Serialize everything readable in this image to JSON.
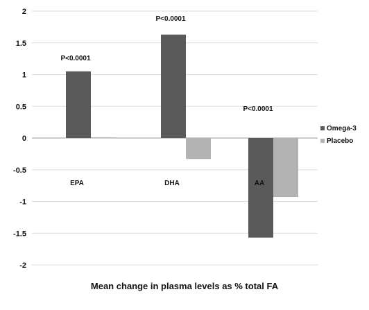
{
  "chart_data": {
    "type": "bar",
    "categories": [
      "EPA",
      "DHA",
      "AA"
    ],
    "series": [
      {
        "name": "Omega-3",
        "values": [
          1.05,
          1.63,
          -1.57
        ],
        "color": "#5a5a5a"
      },
      {
        "name": "Placebo",
        "values": [
          0.01,
          -0.33,
          -0.93
        ],
        "color": "#b3b3b3"
      }
    ],
    "annotations": [
      "P<0.0001",
      "P<0.0001",
      "P<0.0001"
    ],
    "xlabel": "Mean change in plasma levels as % total FA",
    "ylabel": "",
    "ylim": [
      -2,
      2
    ],
    "yticks": [
      "2",
      "1.5",
      "1",
      "0.5",
      "0",
      "-0.5",
      "-1",
      "-1.5",
      "-2"
    ],
    "grid": true,
    "legend_position": "right"
  }
}
